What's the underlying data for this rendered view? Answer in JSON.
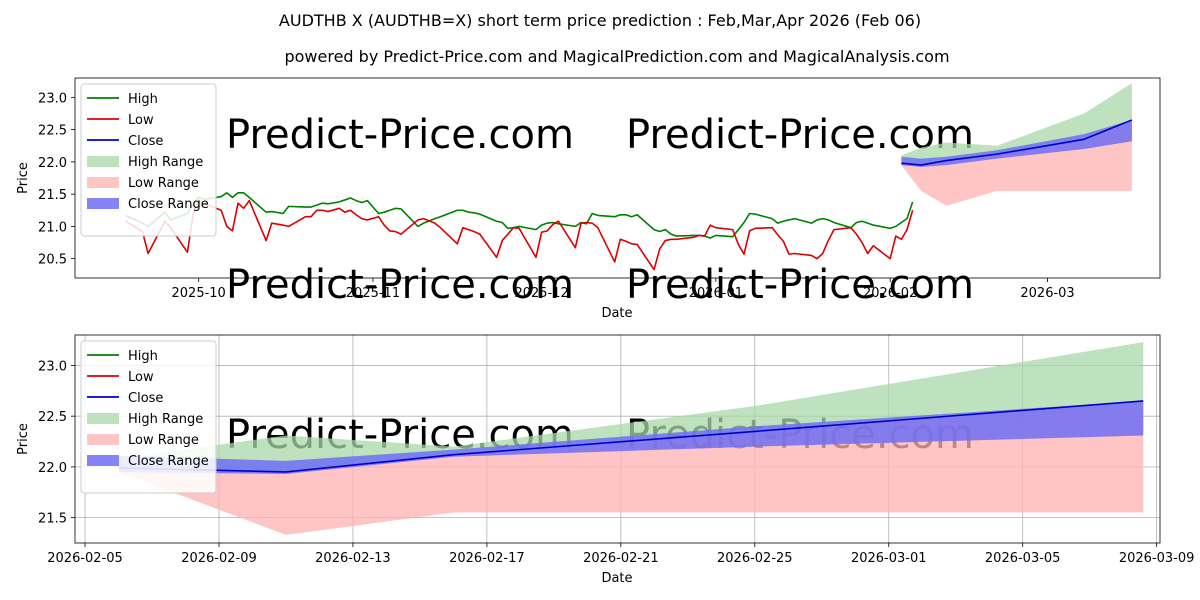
{
  "chart_data": [
    {
      "type": "line",
      "title": "AUDTHB X (AUDTHB=X) short term price prediction : Feb,Mar,Apr 2026 (Feb 06)",
      "subtitle": "powered by Predict-Price.com and MagicalPrediction.com and MagicalAnalysis.com",
      "watermark": "Predict-Price.com",
      "xlabel": "Date",
      "ylabel": "Price",
      "grid": false,
      "legend_position": "top-left",
      "x_unit": "days since 2025-09-01",
      "xlim": [
        8,
        201
      ],
      "ylim": [
        20.2,
        23.3
      ],
      "xticks": [
        {
          "x": 30,
          "label": "2025-10"
        },
        {
          "x": 61,
          "label": "2025-11"
        },
        {
          "x": 91,
          "label": "2025-12"
        },
        {
          "x": 122,
          "label": "2026-01"
        },
        {
          "x": 153,
          "label": "2026-02"
        },
        {
          "x": 181,
          "label": "2026-03"
        }
      ],
      "yticks": [
        {
          "v": 20.5,
          "label": "20.5"
        },
        {
          "v": 21.0,
          "label": "21.0"
        },
        {
          "v": 21.5,
          "label": "21.5"
        },
        {
          "v": 22.0,
          "label": "22.0"
        },
        {
          "v": 22.5,
          "label": "22.5"
        },
        {
          "v": 23.0,
          "label": "23.0"
        }
      ],
      "series": [
        {
          "name": "High",
          "color": "#008000",
          "x": [
            17,
            20,
            21,
            24,
            25,
            28,
            29,
            30,
            31,
            34,
            35,
            36,
            37,
            38,
            39,
            42,
            43,
            45,
            46,
            49,
            50,
            51,
            52,
            53,
            55,
            56,
            57,
            58,
            59,
            60,
            62,
            63,
            64,
            65,
            66,
            69,
            70,
            72,
            73,
            76,
            77,
            78,
            79,
            80,
            83,
            84,
            85,
            86,
            87,
            90,
            91,
            92,
            93,
            94,
            97,
            98,
            99,
            100,
            101,
            104,
            105,
            106,
            107,
            108,
            111,
            112,
            113,
            114,
            115,
            118,
            119,
            120,
            121,
            122,
            125,
            126,
            127,
            128,
            129,
            132,
            133,
            134,
            135,
            136,
            139,
            140,
            141,
            142,
            143,
            146,
            147,
            148,
            149,
            150,
            153,
            154,
            155,
            156,
            157
          ],
          "values": [
            21.17,
            21.05,
            21.0,
            21.22,
            21.1,
            21.2,
            21.35,
            21.45,
            21.42,
            21.46,
            21.52,
            21.45,
            21.52,
            21.52,
            21.45,
            21.22,
            21.23,
            21.2,
            21.31,
            21.3,
            21.3,
            21.33,
            21.36,
            21.35,
            21.38,
            21.41,
            21.44,
            21.4,
            21.37,
            21.4,
            21.2,
            21.22,
            21.25,
            21.28,
            21.27,
            21.0,
            21.05,
            21.12,
            21.15,
            21.25,
            21.25,
            21.22,
            21.21,
            21.19,
            21.08,
            21.06,
            20.97,
            20.98,
            21.0,
            20.95,
            21.02,
            21.05,
            21.06,
            21.04,
            21.0,
            21.06,
            21.04,
            21.2,
            21.17,
            21.15,
            21.18,
            21.18,
            21.15,
            21.18,
            20.95,
            20.92,
            20.95,
            20.88,
            20.85,
            20.86,
            20.86,
            20.85,
            20.82,
            20.86,
            20.84,
            20.95,
            21.06,
            21.2,
            21.19,
            21.12,
            21.05,
            21.08,
            21.1,
            21.12,
            21.05,
            21.1,
            21.12,
            21.1,
            21.06,
            20.98,
            21.06,
            21.08,
            21.05,
            21.02,
            20.97,
            21.0,
            21.06,
            21.12,
            21.38
          ]
        },
        {
          "name": "Low",
          "color": "#dd0000",
          "x": [
            17,
            20,
            21,
            24,
            25,
            28,
            29,
            30,
            31,
            34,
            35,
            36,
            37,
            38,
            39,
            42,
            43,
            45,
            46,
            49,
            50,
            51,
            52,
            53,
            55,
            56,
            57,
            58,
            59,
            60,
            62,
            63,
            64,
            65,
            66,
            69,
            70,
            72,
            73,
            76,
            77,
            78,
            79,
            80,
            83,
            84,
            85,
            86,
            87,
            90,
            91,
            92,
            93,
            94,
            97,
            98,
            99,
            100,
            101,
            104,
            105,
            106,
            107,
            108,
            111,
            112,
            113,
            114,
            115,
            118,
            119,
            120,
            121,
            122,
            125,
            126,
            127,
            128,
            129,
            132,
            133,
            134,
            135,
            136,
            139,
            140,
            141,
            142,
            143,
            146,
            147,
            148,
            149,
            150,
            153,
            154,
            155,
            156,
            157
          ],
          "values": [
            21.08,
            20.92,
            20.58,
            21.08,
            20.98,
            20.6,
            21.18,
            21.4,
            21.35,
            21.25,
            21.0,
            20.93,
            21.36,
            21.28,
            21.4,
            20.78,
            21.05,
            21.02,
            21.0,
            21.15,
            21.15,
            21.25,
            21.25,
            21.23,
            21.28,
            21.22,
            21.25,
            21.18,
            21.12,
            21.1,
            21.15,
            21.02,
            20.93,
            20.92,
            20.88,
            21.1,
            21.12,
            21.05,
            20.98,
            20.73,
            20.98,
            20.95,
            20.92,
            20.88,
            20.52,
            20.78,
            20.88,
            20.98,
            20.97,
            20.52,
            20.91,
            20.93,
            21.03,
            21.08,
            20.67,
            21.05,
            21.06,
            21.05,
            20.98,
            20.45,
            20.8,
            20.77,
            20.73,
            20.72,
            20.33,
            20.65,
            20.78,
            20.8,
            20.8,
            20.83,
            20.86,
            20.85,
            21.02,
            20.98,
            20.95,
            20.72,
            20.57,
            20.93,
            20.97,
            20.98,
            20.87,
            20.77,
            20.57,
            20.58,
            20.55,
            20.5,
            20.58,
            20.78,
            20.95,
            20.98,
            20.88,
            20.75,
            20.58,
            20.7,
            20.5,
            20.85,
            20.8,
            20.95,
            21.25
          ]
        },
        {
          "name": "Close",
          "color": "#0000cc",
          "x": [
            155,
            158.5,
            163,
            172,
            187.5,
            196
          ],
          "values": [
            21.98,
            21.95,
            22.02,
            22.12,
            22.35,
            22.65
          ]
        },
        {
          "name": "High Range",
          "color": "#a8d8a8",
          "type": "area",
          "x": [
            155,
            158.5,
            163,
            172,
            187.5,
            196
          ],
          "upper": [
            22.1,
            22.22,
            22.3,
            22.25,
            22.75,
            23.22
          ],
          "lower": [
            21.98,
            21.95,
            22.02,
            22.12,
            22.35,
            22.65
          ]
        },
        {
          "name": "Low Range",
          "color": "#ffb0b0",
          "type": "area",
          "x": [
            155,
            158.5,
            163,
            172,
            187.5,
            196
          ],
          "upper": [
            21.98,
            21.95,
            22.02,
            22.12,
            22.35,
            22.65
          ],
          "lower": [
            21.95,
            21.55,
            21.32,
            21.55,
            21.55,
            21.55
          ]
        },
        {
          "name": "Close Range",
          "color": "#6e6ef5",
          "type": "area",
          "x": [
            155,
            158.5,
            163,
            172,
            187.5,
            196
          ],
          "upper": [
            22.08,
            22.05,
            22.08,
            22.18,
            22.43,
            22.65
          ],
          "lower": [
            21.95,
            21.92,
            21.95,
            22.05,
            22.2,
            22.32
          ]
        }
      ]
    },
    {
      "type": "line",
      "xlabel": "Date",
      "ylabel": "Price",
      "grid": true,
      "legend_position": "top-left",
      "x_unit": "days since 2026-02-05",
      "xlim": [
        -0.3,
        32.1
      ],
      "ylim": [
        21.25,
        23.3
      ],
      "xticks": [
        {
          "x": 0,
          "label": "2026-02-05"
        },
        {
          "x": 4,
          "label": "2026-02-09"
        },
        {
          "x": 8,
          "label": "2026-02-13"
        },
        {
          "x": 12,
          "label": "2026-02-17"
        },
        {
          "x": 16,
          "label": "2026-02-21"
        },
        {
          "x": 20,
          "label": "2026-02-25"
        },
        {
          "x": 24,
          "label": "2026-03-01"
        },
        {
          "x": 28,
          "label": "2026-03-05"
        },
        {
          "x": 32,
          "label": "2026-03-09"
        }
      ],
      "yticks": [
        {
          "v": 21.5,
          "label": "21.5"
        },
        {
          "v": 22.0,
          "label": "22.0"
        },
        {
          "v": 22.5,
          "label": "22.5"
        },
        {
          "v": 23.0,
          "label": "23.0"
        }
      ],
      "series": [
        {
          "name": "High",
          "color": "#008000",
          "x": [],
          "values": []
        },
        {
          "name": "Low",
          "color": "#dd0000",
          "x": [],
          "values": []
        },
        {
          "name": "Close",
          "color": "#0000cc",
          "x": [
            1,
            6,
            11,
            20,
            31.6
          ],
          "values": [
            21.99,
            21.95,
            22.12,
            22.35,
            22.65
          ]
        },
        {
          "name": "High Range",
          "color": "#a8d8a8",
          "type": "area",
          "x": [
            1,
            6,
            11,
            20,
            31.6
          ],
          "upper": [
            22.08,
            22.31,
            22.2,
            22.6,
            23.23
          ],
          "lower": [
            21.99,
            21.95,
            22.12,
            22.35,
            22.65
          ]
        },
        {
          "name": "Low Range",
          "color": "#ffb0b0",
          "type": "area",
          "x": [
            1,
            6,
            11,
            20,
            31.6
          ],
          "upper": [
            21.99,
            21.95,
            22.12,
            22.35,
            22.65
          ],
          "lower": [
            21.95,
            21.33,
            21.55,
            21.55,
            21.55
          ]
        },
        {
          "name": "Close Range",
          "color": "#6e6ef5",
          "type": "area",
          "x": [
            1,
            6,
            11,
            20,
            31.6
          ],
          "upper": [
            22.11,
            22.06,
            22.17,
            22.4,
            22.65
          ],
          "lower": [
            21.95,
            21.93,
            22.1,
            22.2,
            22.31
          ]
        }
      ]
    }
  ]
}
